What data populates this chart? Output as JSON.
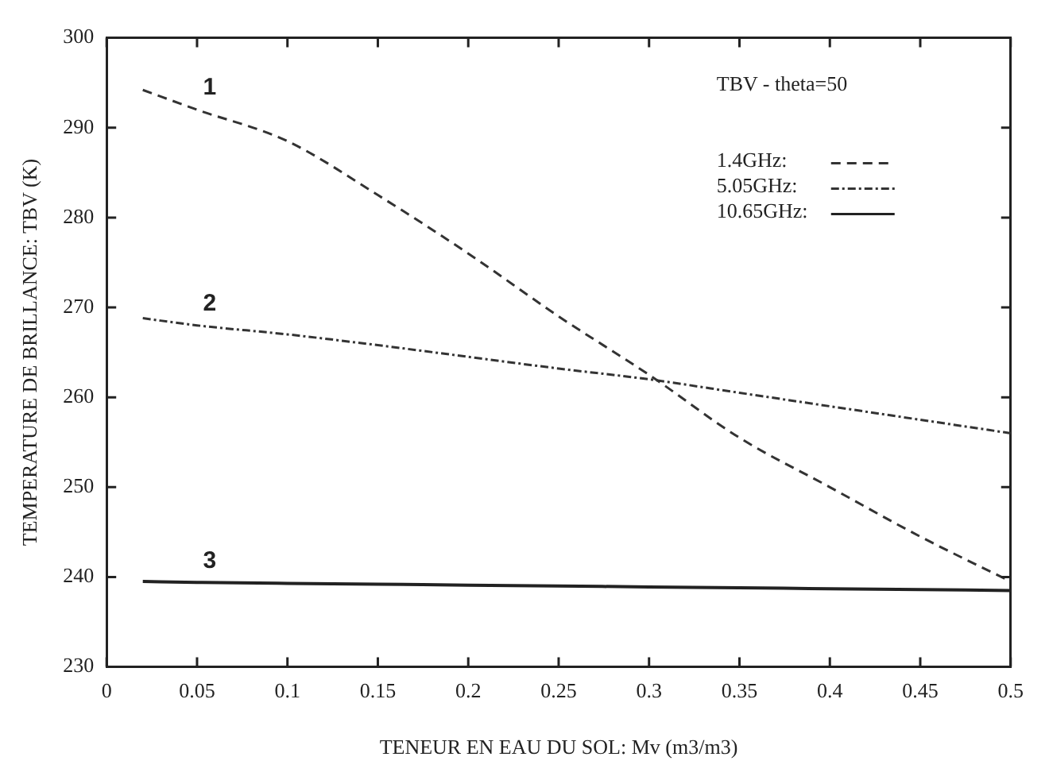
{
  "chart_data": {
    "type": "line",
    "xlabel": "TENEUR EN EAU DU SOL: Mv (m3/m3)",
    "ylabel": "TEMPERATURE DE BRILLANCE: TBV (K)",
    "legend_title": "TBV - theta=50",
    "legend": "top right",
    "grid": false,
    "marker": "none",
    "x": [
      0.02,
      0.05,
      0.1,
      0.15,
      0.2,
      0.25,
      0.3,
      0.35,
      0.4,
      0.45,
      0.5
    ],
    "series": [
      {
        "name": "1.4GHz:",
        "color": "#333333",
        "line_style": "dashed",
        "values": [
          294.2,
          292,
          288.5,
          282.5,
          276,
          269,
          262.5,
          255.5,
          250,
          244.5,
          239.5
        ]
      },
      {
        "name": "5.05GHz:",
        "color": "#333333",
        "line_style": "dotted",
        "values": [
          268.8,
          268,
          267,
          265.8,
          264.5,
          263.2,
          262,
          260.5,
          259,
          257.5,
          256
        ]
      },
      {
        "name": "10.65GHz:",
        "color": "#222222",
        "line_style": "solid",
        "values": [
          239.5,
          239.4,
          239.3,
          239.2,
          239.1,
          239,
          238.9,
          238.8,
          238.7,
          238.6,
          238.5
        ]
      }
    ],
    "xlim": [
      0,
      0.5
    ],
    "xticks": [
      0,
      0.05,
      0.1,
      0.15,
      0.2,
      0.25,
      0.3,
      0.35,
      0.4,
      0.45,
      0.5
    ],
    "ylim": [
      230,
      300
    ],
    "yticks": [
      230,
      240,
      250,
      260,
      270,
      280,
      290,
      300
    ],
    "annotations": [
      "1",
      "2",
      "3"
    ]
  }
}
